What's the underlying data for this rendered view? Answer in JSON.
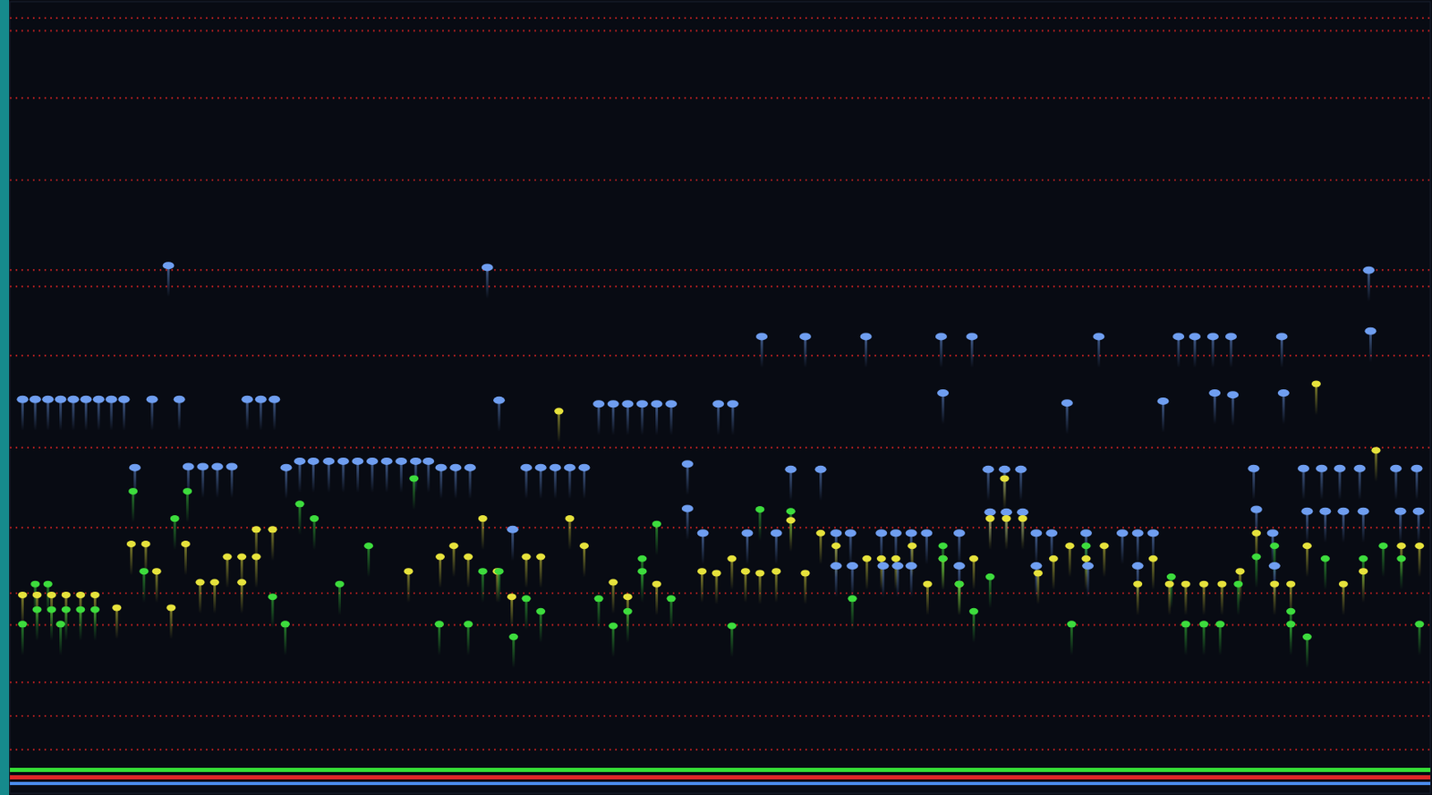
{
  "chart_data": {
    "type": "scatter",
    "xlim": [
      0,
      1568
    ],
    "ylim": [
      870,
      0
    ],
    "yticks": [
      18,
      32,
      106,
      196,
      295,
      313,
      389,
      490,
      578,
      650,
      685,
      748,
      785,
      822
    ],
    "grid": true,
    "tick_labels": false,
    "series": [
      {
        "color": "#6f9ef0",
        "x": [
          14,
          28,
          42,
          56,
          70,
          84,
          98,
          112,
          126,
          157,
          187,
          262,
          277,
          292,
          175,
          527,
          1500,
          540,
          650,
          666,
          682,
          698,
          714,
          730,
          782,
          798,
          1167,
          1273,
          830,
          878,
          945,
          1028,
          1062,
          1202,
          1290,
          1308,
          1328,
          1348,
          1404,
          1502,
          1030,
          1330,
          1350,
          1406,
          138,
          197,
          213,
          229,
          245,
          305,
          320,
          335,
          352,
          368,
          384,
          400,
          416,
          432,
          448,
          462,
          476,
          492,
          508,
          570,
          586,
          602,
          618,
          634,
          748,
          862,
          895,
          1080,
          1098,
          1116,
          1373,
          1428,
          1448,
          1468,
          1490,
          1530,
          1553,
          748,
          1082,
          1100,
          1118,
          1376,
          1432,
          1452,
          1472,
          1494,
          1535,
          1555,
          555,
          765,
          814,
          846,
          912,
          928,
          962,
          978,
          995,
          1012,
          1048,
          1133,
          1150,
          1188,
          1228,
          1245,
          1262,
          1394,
          912,
          930,
          964,
          980,
          995,
          1048,
          1133,
          1190,
          1245,
          1396
        ],
        "values": [
          437,
          437,
          437,
          437,
          437,
          437,
          437,
          437,
          437,
          437,
          437,
          437,
          437,
          437,
          290,
          292,
          295,
          438,
          442,
          442,
          442,
          442,
          442,
          442,
          442,
          442,
          441,
          439,
          368,
          368,
          368,
          368,
          368,
          368,
          368,
          368,
          368,
          368,
          368,
          362,
          430,
          430,
          432,
          430,
          512,
          511,
          511,
          511,
          511,
          512,
          505,
          505,
          505,
          505,
          505,
          505,
          505,
          505,
          505,
          505,
          512,
          512,
          512,
          512,
          512,
          512,
          512,
          512,
          508,
          514,
          514,
          514,
          514,
          514,
          513,
          513,
          513,
          513,
          513,
          513,
          513,
          557,
          561,
          561,
          561,
          558,
          560,
          560,
          560,
          560,
          560,
          560,
          580,
          584,
          584,
          584,
          584,
          584,
          584,
          584,
          584,
          584,
          584,
          584,
          584,
          584,
          584,
          584,
          584,
          584,
          620,
          620,
          620,
          620,
          620,
          620,
          620,
          620,
          620,
          620
        ]
      },
      {
        "color": "#e6e23c",
        "x": [
          134,
          150,
          194,
          272,
          290,
          240,
          256,
          272,
          162,
          210,
          226,
          256,
          14,
          30,
          46,
          62,
          78,
          94,
          118,
          178,
          440,
          475,
          490,
          506,
          522,
          538,
          570,
          586,
          606,
          618,
          634,
          554,
          666,
          682,
          714,
          764,
          780,
          797,
          812,
          828,
          846,
          862,
          878,
          895,
          912,
          946,
          962,
          978,
          996,
          1013,
          1030,
          1048,
          1064,
          1098,
          1082,
          1100,
          1118,
          1135,
          1152,
          1170,
          1188,
          1208,
          1245,
          1262,
          1280,
          1298,
          1318,
          1338,
          1358,
          1376,
          1396,
          1414,
          1432,
          1442,
          1472,
          1494,
          1508,
          1536,
          1556
        ],
        "values": [
          596,
          596,
          596,
          580,
          580,
          610,
          610,
          610,
          626,
          638,
          638,
          638,
          652,
          652,
          652,
          652,
          652,
          652,
          666,
          666,
          626,
          610,
          598,
          610,
          568,
          626,
          610,
          610,
          450,
          568,
          598,
          654,
          638,
          654,
          640,
          626,
          628,
          612,
          626,
          628,
          626,
          570,
          628,
          584,
          598,
          612,
          612,
          612,
          598,
          640,
          612,
          640,
          612,
          524,
          568,
          568,
          568,
          628,
          612,
          598,
          612,
          598,
          640,
          612,
          640,
          640,
          640,
          640,
          626,
          584,
          640,
          640,
          598,
          420,
          640,
          626,
          493,
          598,
          598
        ]
      },
      {
        "color": "#3ddc3d",
        "x": [
          14,
          28,
          42,
          30,
          46,
          62,
          78,
          94,
          56,
          136,
          148,
          182,
          196,
          290,
          304,
          320,
          336,
          364,
          396,
          446,
          474,
          506,
          522,
          540,
          556,
          570,
          586,
          650,
          666,
          682,
          698,
          698,
          714,
          730,
          797,
          828,
          862,
          930,
          1030,
          1030,
          1048,
          1064,
          1082,
          1172,
          1188,
          1282,
          1298,
          1318,
          1336,
          1356,
          1376,
          1396,
          1414,
          1414,
          1432,
          1452,
          1494,
          1516,
          1536,
          1556
        ],
        "values": [
          684,
          640,
          640,
          668,
          668,
          668,
          668,
          668,
          684,
          538,
          626,
          568,
          538,
          654,
          684,
          552,
          568,
          640,
          598,
          524,
          684,
          684,
          626,
          626,
          698,
          656,
          670,
          656,
          686,
          670,
          626,
          612,
          574,
          656,
          686,
          558,
          560,
          656,
          598,
          612,
          640,
          670,
          632,
          684,
          598,
          632,
          684,
          684,
          684,
          640,
          610,
          598,
          684,
          670,
          698,
          612,
          612,
          598,
          612,
          684
        ]
      }
    ]
  }
}
